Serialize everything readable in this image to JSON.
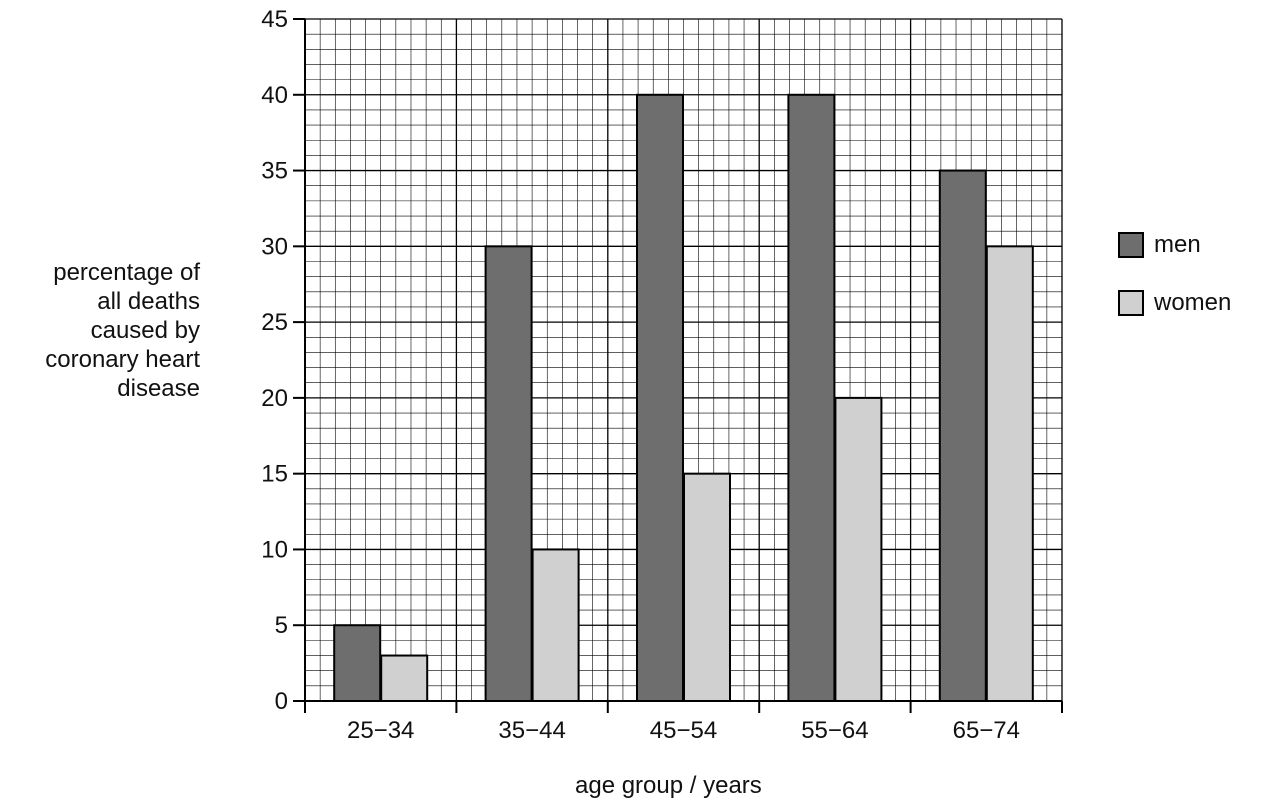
{
  "chart_data": {
    "type": "bar",
    "categories": [
      "25−34",
      "35−44",
      "45−54",
      "55−64",
      "65−74"
    ],
    "series": [
      {
        "name": "men",
        "values": [
          5,
          30,
          40,
          40,
          35
        ],
        "color": "#6e6e6e"
      },
      {
        "name": "women",
        "values": [
          3,
          10,
          15,
          20,
          30
        ],
        "color": "#d0d0d0"
      }
    ],
    "ylim": [
      0,
      45
    ],
    "yticks": [
      0,
      5,
      10,
      15,
      20,
      25,
      30,
      35,
      40,
      45
    ],
    "ylabel_lines": [
      "percentage of",
      "all deaths",
      "caused by",
      "coronary heart",
      "disease"
    ],
    "xlabel": "age group / years",
    "grid": true,
    "legend_position": "right"
  }
}
